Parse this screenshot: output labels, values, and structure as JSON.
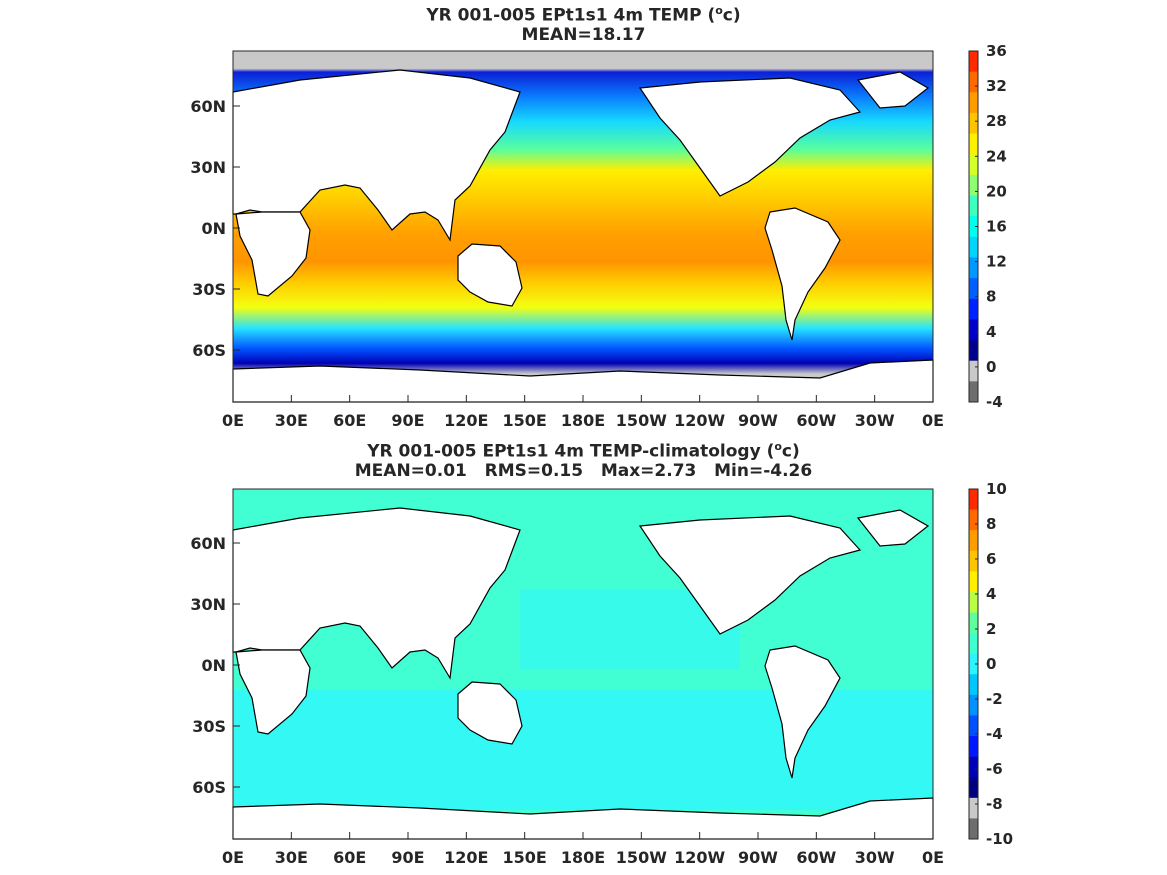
{
  "panels": [
    {
      "title_line1_pre": "YR 001-005 EPt1s1 4m TEMP (",
      "title_unit_sup": "o",
      "title_line1_post": "c)",
      "title_line2": "MEAN=18.17",
      "colorbar_ticks": [
        "36",
        "32",
        "28",
        "24",
        "20",
        "16",
        "12",
        "8",
        "4",
        "0",
        "-4"
      ],
      "colorbar_colors": [
        "#ff2a00",
        "#ff6a00",
        "#ff9d00",
        "#ffc400",
        "#ffef00",
        "#d6ff28",
        "#8dff70",
        "#3dffbf",
        "#00ffee",
        "#00d5ff",
        "#0099ff",
        "#0060ff",
        "#0022ff",
        "#0000c8",
        "#00008c",
        "#c9c9c9",
        "#6e6e6e"
      ]
    },
    {
      "title_line1_pre": "YR 001-005 EPt1s1 4m TEMP-climatology (",
      "title_unit_sup": "o",
      "title_line1_post": "c)",
      "title_line2": "MEAN=0.01   RMS=0.15   Max=2.73   Min=-4.26",
      "colorbar_ticks": [
        "10",
        "8",
        "6",
        "4",
        "2",
        "0",
        "-2",
        "-4",
        "-6",
        "-8",
        "-10"
      ],
      "colorbar_colors": [
        "#ff2a00",
        "#ff6a00",
        "#ff9d00",
        "#ffc400",
        "#ffef00",
        "#b9ff45",
        "#5dff9f",
        "#3dffd0",
        "#2bf4ff",
        "#00c8ff",
        "#0092ff",
        "#0050ff",
        "#0018ff",
        "#0000b8",
        "#000080",
        "#c9c9c9",
        "#6e6e6e"
      ]
    }
  ],
  "lat_labels": [
    "60N",
    "30N",
    "0N",
    "30S",
    "60S"
  ],
  "lon_labels": [
    "0E",
    "30E",
    "60E",
    "90E",
    "120E",
    "150E",
    "180E",
    "150W",
    "120W",
    "90W",
    "60W",
    "30W",
    "0E"
  ],
  "colors": {
    "land": "#ffffff",
    "sea_ice": "#c9c9c9",
    "anomaly_ocean": "#41ffd2",
    "anomaly_ocean_neg": "#2ff6ff"
  }
}
